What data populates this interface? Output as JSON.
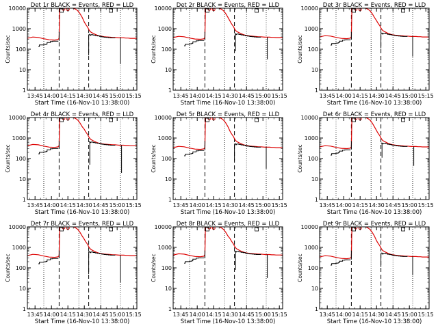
{
  "chart_data": [
    {
      "type": "line",
      "title": "Det 1r BLACK = Events, RED = LLD",
      "ylabel": "Counts/sec",
      "xlabel": "Start Time (16-Nov-10 13:38:00)"
    },
    {
      "type": "line",
      "title": "Det 2r BLACK = Events, RED = LLD",
      "ylabel": "Counts/sec",
      "xlabel": "Start Time (16-Nov-10 13:38:00)"
    },
    {
      "type": "line",
      "title": "Det 3r BLACK = Events, RED = LLD",
      "ylabel": "Counts/sec",
      "xlabel": "Start Time (16-Nov-10 13:38:00)"
    },
    {
      "type": "line",
      "title": "Det 4r BLACK = Events, RED = LLD",
      "ylabel": "Counts/sec",
      "xlabel": "Start Time (16-Nov-10 13:38:00)"
    },
    {
      "type": "line",
      "title": "Det 5r BLACK = Events, RED = LLD",
      "ylabel": "Counts/sec",
      "xlabel": "Start Time (16-Nov-10 13:38:00)"
    },
    {
      "type": "line",
      "title": "Det 6r BLACK = Events, RED = LLD",
      "ylabel": "Counts/sec",
      "xlabel": "Start Time (16-Nov-10 13:38:00)"
    },
    {
      "type": "line",
      "title": "Det 7r BLACK = Events, RED = LLD",
      "ylabel": "Counts/sec",
      "xlabel": "Start Time (16-Nov-10 13:38:00)"
    },
    {
      "type": "line",
      "title": "Det 8r BLACK = Events, RED = LLD",
      "ylabel": "Counts/sec",
      "xlabel": "Start Time (16-Nov-10 13:38:00)"
    },
    {
      "type": "line",
      "title": "Det 9r BLACK = Events, RED = LLD",
      "ylabel": "Counts/sec",
      "xlabel": "Start Time (16-Nov-10 13:38:00)"
    }
  ],
  "shared": {
    "x_tick_labels": [
      "13:45",
      "14:00",
      "14:15",
      "14:30",
      "14:45",
      "15:00",
      "15:15"
    ],
    "x_tick_minutes": [
      7,
      22,
      37,
      52,
      67,
      82,
      97
    ],
    "xlim_minutes": [
      0,
      100
    ],
    "y_tick_labels": [
      "1",
      "10",
      "100",
      "1000",
      "10000"
    ],
    "y_tick_values": [
      1,
      10,
      100,
      1000,
      10000
    ],
    "ylim": [
      1,
      10000
    ],
    "y_scale": "log",
    "colors": {
      "events": "#000000",
      "lld": "#dd0000"
    },
    "dotted_lines_minutes": [
      15,
      47,
      67,
      85
    ],
    "dashed_lines_minutes": [
      29,
      56
    ],
    "lld_series": {
      "name": "LLD",
      "x": [
        0,
        5,
        10,
        15,
        20,
        25,
        28,
        29,
        29.5,
        31,
        33,
        35,
        37,
        38,
        40,
        42,
        44,
        46,
        48,
        50,
        52,
        53,
        55,
        56,
        57,
        58,
        60,
        62,
        64,
        66,
        68,
        70,
        72,
        74,
        76,
        78,
        80,
        82,
        84,
        86,
        88,
        90,
        92,
        94,
        96,
        98,
        100
      ],
      "y": [
        400,
        460,
        440,
        380,
        340,
        330,
        350,
        400,
        10000,
        12000,
        13000,
        12500,
        11000,
        11000,
        10500,
        10000,
        9000,
        7500,
        5500,
        3600,
        2500,
        2000,
        1400,
        1100,
        900,
        800,
        700,
        620,
        560,
        520,
        500,
        480,
        470,
        460,
        450,
        440,
        440,
        430,
        420,
        420,
        420,
        410,
        410,
        400,
        400,
        400,
        400
      ]
    },
    "events_series": [
      {
        "name": "Events",
        "x": [
          10,
          11,
          14,
          15,
          17,
          18,
          20,
          21,
          23,
          28
        ],
        "y": [
          160,
          190,
          190,
          200,
          210,
          250,
          250,
          280,
          290,
          300
        ]
      },
      {
        "name": "Events",
        "x": [
          56,
          57,
          58,
          60,
          62,
          64,
          66,
          68,
          70,
          72,
          74,
          76,
          78,
          80
        ],
        "y": [
          620,
          560,
          600,
          570,
          540,
          520,
          490,
          470,
          450,
          440,
          430,
          420,
          420,
          410
        ]
      }
    ],
    "event_dips": [
      {
        "x": 56,
        "y": 100
      },
      {
        "x": 85,
        "y": 40
      }
    ]
  }
}
